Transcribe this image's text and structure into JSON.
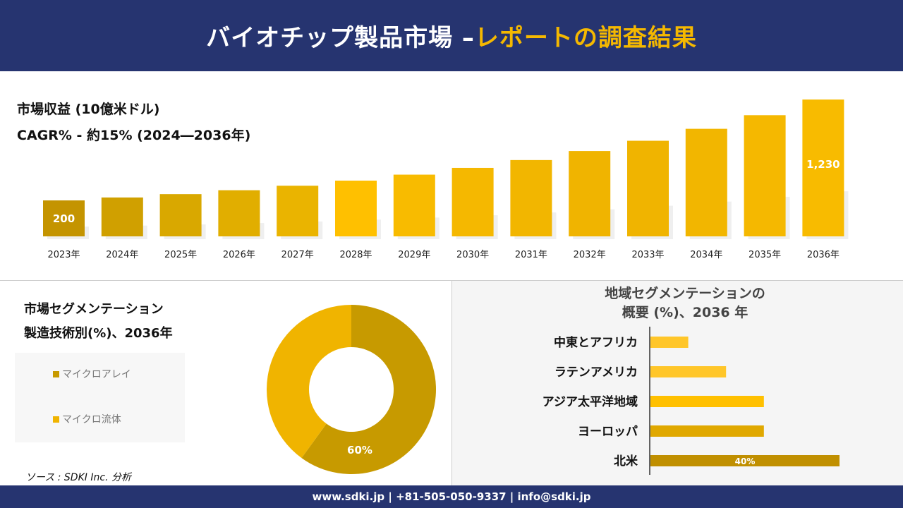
{
  "header": {
    "title_white": "バイオチップ製品市場 –",
    "title_yellow": "レポートの調査結果"
  },
  "revenue": {
    "title": "市場収益 (10億米ドル)",
    "cagr": "CAGR% - 約15% (2024―2036年)"
  },
  "segment": {
    "title_line1": "市場セグメンテーション",
    "title_line2": "製造技術別(%)、2036年",
    "legend": [
      "マイクロアレイ",
      "マイクロ流体"
    ]
  },
  "region": {
    "title_line1": "地域セグメンテーションの",
    "title_line2": "概要 (%)、2036 年"
  },
  "source": "ソース : SDKI Inc. 分析",
  "footer": "www.sdki.jp | +81-505-050-9337 | info@sdki.jp",
  "chart_data": [
    {
      "type": "bar",
      "title": "市場収益 (10億米ドル)",
      "categories": [
        "2023年",
        "2024年",
        "2025年",
        "2026年",
        "2027年",
        "2028年",
        "2029年",
        "2030年",
        "2031年",
        "2032年",
        "2033年",
        "2034年",
        "2035年",
        "2036年"
      ],
      "values": [
        200,
        230,
        264,
        304,
        350,
        402,
        463,
        532,
        612,
        704,
        809,
        931,
        1070,
        1230
      ],
      "data_labels": {
        "0": "200",
        "13": "1,230"
      },
      "colors": [
        "#c49400",
        "#d0a000",
        "#d9a800",
        "#e1ae00",
        "#eab400",
        "#ffc000",
        "#f8bb00",
        "#f5b800",
        "#f2b600",
        "#f0b400",
        "#f0b400",
        "#f2b600",
        "#f5b800",
        "#f8bb00"
      ]
    },
    {
      "type": "pie",
      "categories": [
        "マイクロアレイ",
        "マイクロ流体"
      ],
      "values": [
        60,
        40
      ],
      "data_labels": [
        "60%",
        ""
      ],
      "colors": [
        "#c79a00",
        "#f0b400"
      ]
    },
    {
      "type": "bar",
      "orientation": "horizontal",
      "categories": [
        "中東とアフリカ",
        "ラテンアメリカ",
        "アジア太平洋地域",
        "ヨーロッパ",
        "北米"
      ],
      "values": [
        8,
        16,
        24,
        24,
        40
      ],
      "data_labels": [
        "",
        "",
        "",
        "",
        "40%"
      ],
      "colors": [
        "#ffc629",
        "#ffc629",
        "#ffc000",
        "#e0a800",
        "#c08f00"
      ]
    }
  ]
}
